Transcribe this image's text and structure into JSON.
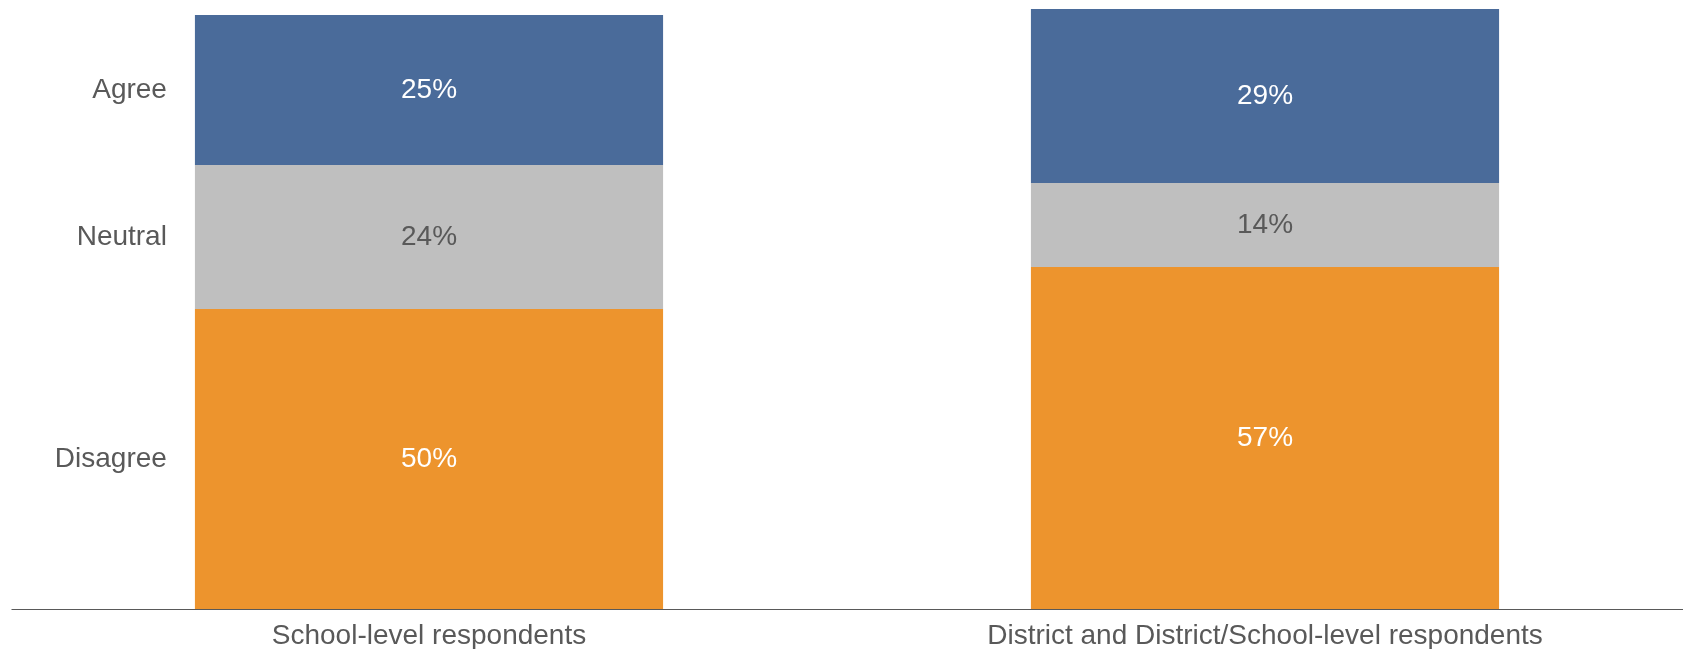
{
  "chart_data": {
    "type": "bar",
    "stacked": true,
    "tick_labels": "x",
    "categories": [
      "School-level respondents",
      "District and District/School-level respondents"
    ],
    "series": [
      {
        "name": "Disagree",
        "color": "#ed942d",
        "values": [
          50,
          57
        ],
        "value_labels": [
          "50%",
          "57%"
        ]
      },
      {
        "name": "Neutral",
        "color": "#bfbfbf",
        "values": [
          24,
          14
        ],
        "value_labels": [
          "24%",
          "14%"
        ]
      },
      {
        "name": "Agree",
        "color": "#4a6b9a",
        "values": [
          25,
          29
        ],
        "value_labels": [
          "25%",
          "29%"
        ]
      }
    ]
  }
}
